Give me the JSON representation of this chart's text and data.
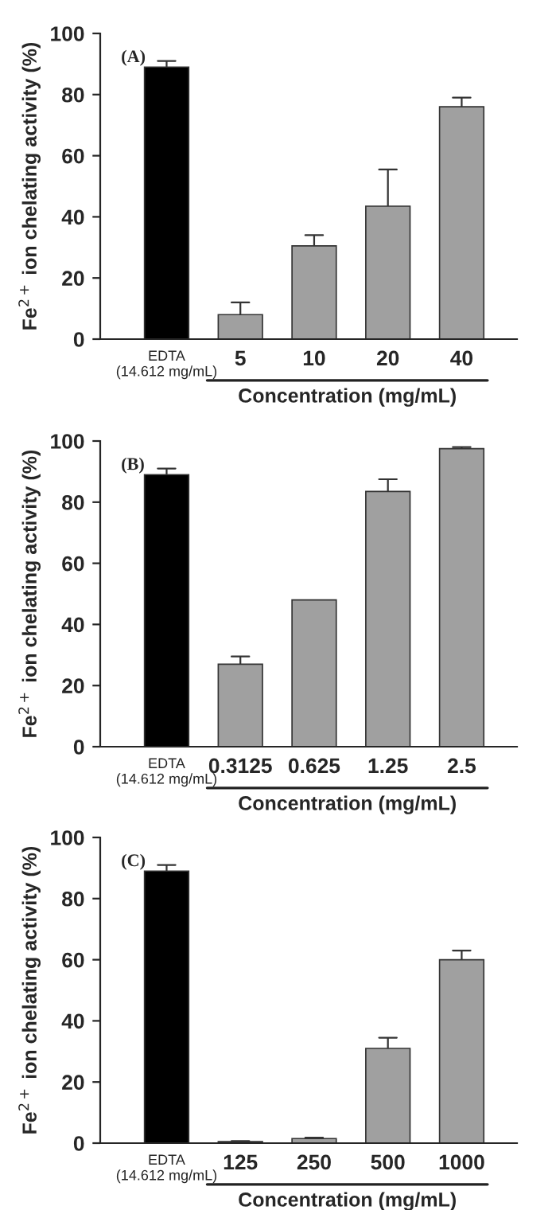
{
  "chart_data": [
    {
      "type": "bar",
      "categories": [
        "EDTA\n(14.612 mg/mL)",
        "5",
        "10",
        "20",
        "40"
      ],
      "values": [
        89,
        8,
        30.5,
        43.5,
        76
      ],
      "colors": [
        "#000000",
        "#a0a0a0",
        "#a0a0a0",
        "#a0a0a0",
        "#a0a0a0"
      ],
      "errors": [
        [
          89,
          91
        ],
        [
          8,
          12
        ],
        [
          30.5,
          34
        ],
        [
          43.5,
          55.5
        ],
        [
          76,
          79
        ]
      ],
      "xlabel": "Concentration (mg/mL)",
      "ylabel": "Fe$^{2+}$ ion chelating activity (%)",
      "ylim": [
        0,
        100
      ],
      "yticks": [
        0,
        20,
        40,
        60,
        80,
        100
      ],
      "annotations": [
        "(A)"
      ]
    },
    {
      "type": "bar",
      "categories": [
        "EDTA\n(14.612 mg/mL)",
        "0.3125",
        "0.625",
        "1.25",
        "2.5"
      ],
      "values": [
        89,
        27,
        48,
        83.5,
        97.5
      ],
      "colors": [
        "#000000",
        "#a0a0a0",
        "#a0a0a0",
        "#a0a0a0",
        "#a0a0a0"
      ],
      "errors": [
        [
          89,
          91
        ],
        [
          27,
          29.5
        ],
        null,
        [
          83.5,
          87.5
        ],
        [
          97.5,
          98
        ]
      ],
      "xlabel": "Concentration (mg/mL)",
      "ylabel": "Fe$^{2+}$ ion chelating activity (%)",
      "ylim": [
        0,
        100
      ],
      "yticks": [
        0,
        20,
        40,
        60,
        80,
        100
      ],
      "annotations": [
        "(B)"
      ]
    },
    {
      "type": "bar",
      "categories": [
        "EDTA\n(14.612 mg/mL)",
        "125",
        "250",
        "500",
        "1000"
      ],
      "values": [
        89,
        0.5,
        1.5,
        31,
        60
      ],
      "colors": [
        "#000000",
        "#a0a0a0",
        "#a0a0a0",
        "#a0a0a0",
        "#a0a0a0"
      ],
      "errors": [
        [
          89,
          91
        ],
        [
          0.5,
          0.7
        ],
        [
          1.5,
          1.8
        ],
        [
          31,
          34.5
        ],
        [
          60,
          63
        ]
      ],
      "xlabel": "Concentration (mg/mL)",
      "ylabel": "Fe$^{2+}$ ion chelating activity (%)",
      "ylim": [
        0,
        100
      ],
      "yticks": [
        0,
        20,
        40,
        60,
        80,
        100
      ],
      "annotations": [
        "(C)"
      ]
    }
  ]
}
